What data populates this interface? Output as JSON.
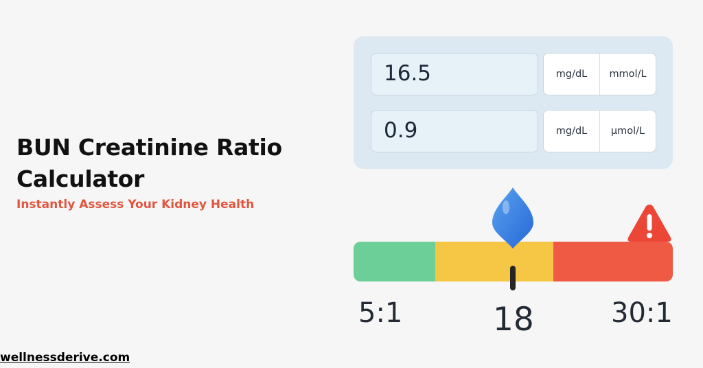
{
  "header": {
    "title": "BUN Creatinine Ratio Calculator",
    "subtitle": "Instantly Assess Your Kidney Health"
  },
  "calculator": {
    "bun": {
      "value": "16.5",
      "units": [
        "mg/dL",
        "mmol/L"
      ]
    },
    "creatinine": {
      "value": "0.9",
      "units": [
        "mg/dL",
        "µmol/L"
      ]
    }
  },
  "gauge": {
    "min_label": "5:1",
    "value_label": "18",
    "max_label": "30:1",
    "marker_icon": "location-pin-icon",
    "alert_icon": "warning-triangle-icon",
    "zones": [
      {
        "name": "low",
        "color": "#6dcf98"
      },
      {
        "name": "normal",
        "color": "#f6c744"
      },
      {
        "name": "high",
        "color": "#ef5a45"
      }
    ]
  },
  "footer": {
    "site": "wellnessderive.com"
  },
  "colors": {
    "accent": "#e2553f",
    "panel": "#dde9f2",
    "marker": "#3d86e0"
  }
}
